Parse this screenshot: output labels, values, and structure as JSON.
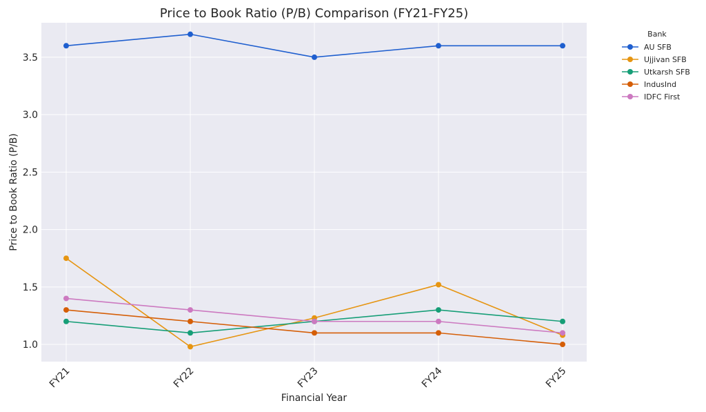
{
  "chart_data": {
    "type": "line",
    "title": "Price to Book Ratio (P/B) Comparison (FY21-FY25)",
    "xlabel": "Financial Year",
    "ylabel": "Price to Book Ratio (P/B)",
    "categories": [
      "FY21",
      "FY22",
      "FY23",
      "FY24",
      "FY25"
    ],
    "ylim": [
      0.85,
      3.8
    ],
    "yticks": [
      1.0,
      1.5,
      2.0,
      2.5,
      3.0,
      3.5
    ],
    "grid": true,
    "legend_title": "Bank",
    "legend_position": "outside-top-right",
    "background_color": "#eaeaf2",
    "series": [
      {
        "name": "AU SFB",
        "color": "#1f5fcf",
        "values": [
          3.6,
          3.7,
          3.5,
          3.6,
          3.6
        ]
      },
      {
        "name": "Ujjivan SFB",
        "color": "#e69512",
        "values": [
          1.75,
          0.98,
          1.23,
          1.52,
          1.08
        ]
      },
      {
        "name": "Utkarsh SFB",
        "color": "#169e77",
        "values": [
          1.2,
          1.1,
          1.2,
          1.3,
          1.2
        ]
      },
      {
        "name": "IndusInd",
        "color": "#d55e07",
        "values": [
          1.3,
          1.2,
          1.1,
          1.1,
          1.0
        ]
      },
      {
        "name": "IDFC First",
        "color": "#cc79c0",
        "values": [
          1.4,
          1.3,
          1.2,
          1.2,
          1.1
        ]
      }
    ]
  }
}
